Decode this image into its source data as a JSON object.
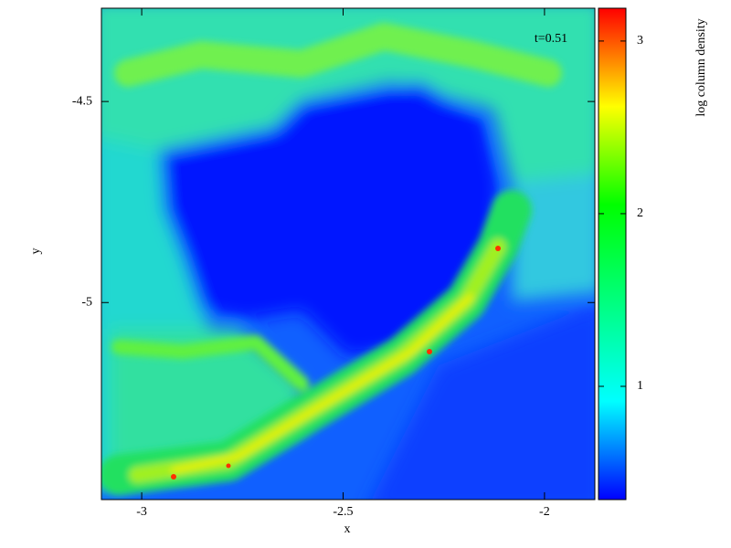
{
  "chart_data": {
    "type": "heatmap",
    "annotation": "t=0.51",
    "xlabel": "x",
    "ylabel": "y",
    "xlim": [
      -3.1,
      -1.875
    ],
    "xticks": [
      -3,
      -2.5,
      -2
    ],
    "ylim": [
      -5.49,
      -4.268
    ],
    "yticks": [
      -4.5,
      -5
    ],
    "colorbar": {
      "label": "log column density",
      "lim": [
        0.344,
        3.19
      ],
      "ticks": [
        1,
        2,
        3
      ],
      "colormap": [
        "#0000ff",
        "#00ffff",
        "#00ff80",
        "#00ff00",
        "#ffff00",
        "#ff0000"
      ]
    }
  }
}
